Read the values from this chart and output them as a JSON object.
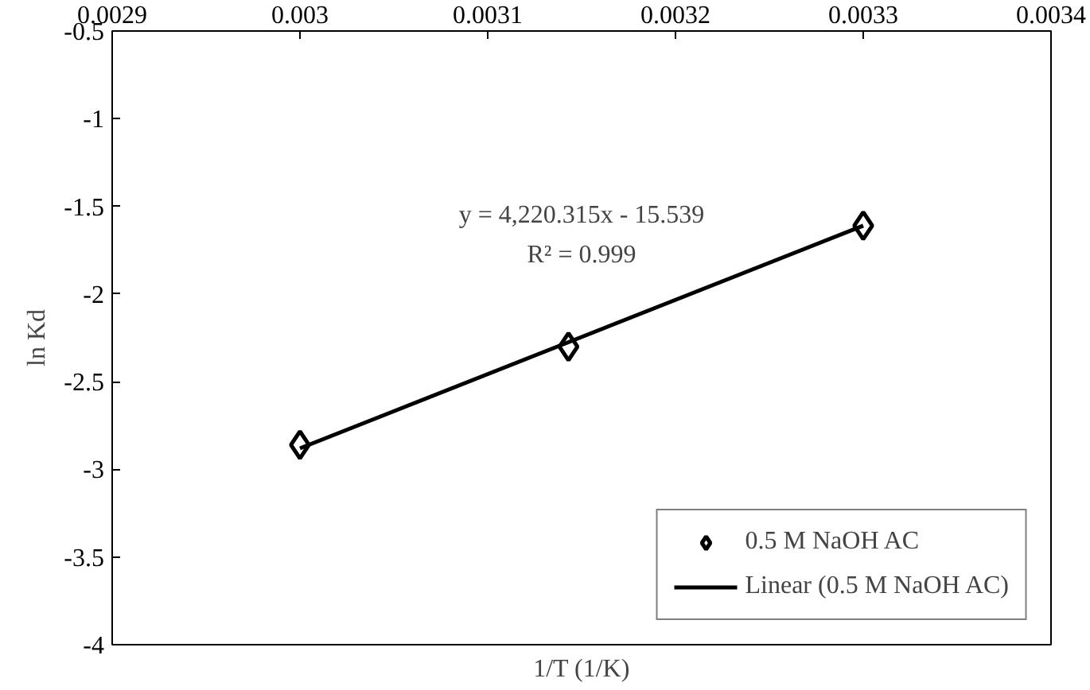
{
  "chart_data": {
    "type": "scatter",
    "xlabel": "1/T (1/K)",
    "ylabel": "ln Kd",
    "xlim": [
      0.0029,
      0.0034
    ],
    "xticks": [
      0.0029,
      0.003,
      0.0031,
      0.0032,
      0.0033,
      0.0034
    ],
    "ylim": [
      -4,
      -0.5
    ],
    "yticks": [
      -0.5,
      -1,
      -1.5,
      -2,
      -2.5,
      -3,
      -3.5,
      -4
    ],
    "grid": false,
    "legend": "bottom right",
    "series": [
      {
        "name": "0.5 M NaOH AC",
        "marker": "diamond",
        "color": "#000000",
        "x": [
          0.003,
          0.003143,
          0.0033
        ],
        "values": [
          -2.86,
          -2.3,
          -1.61
        ]
      },
      {
        "name": "Linear (0.5 M NaOH AC)",
        "type": "line",
        "line_style": "solid",
        "color": "#000000",
        "x": [
          0.003,
          0.0033
        ],
        "values": [
          -2.88,
          -1.61
        ]
      }
    ],
    "annotations": [
      "y = 4,220.315x - 15.539",
      "R² = 0.999"
    ]
  }
}
